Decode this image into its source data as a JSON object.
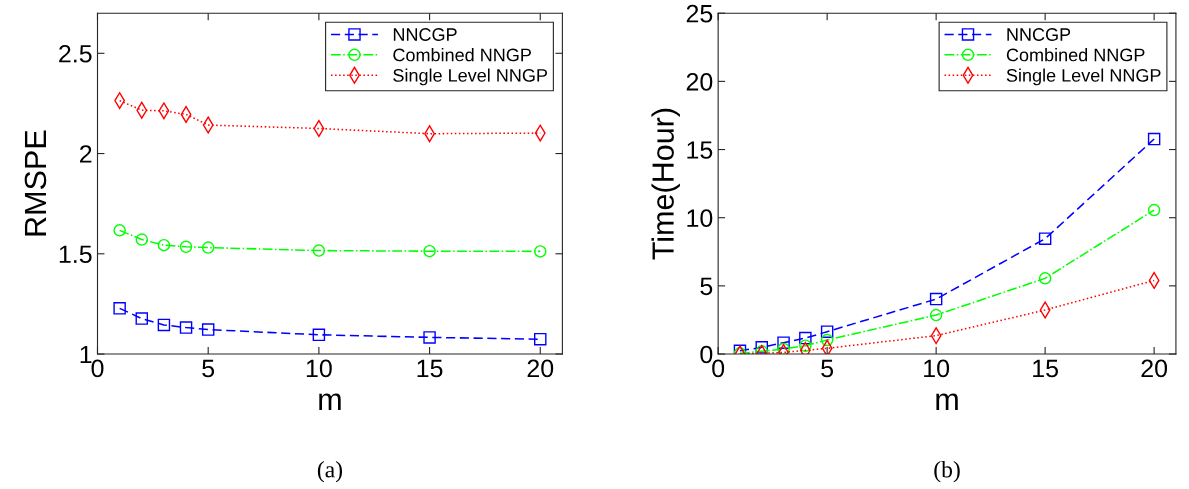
{
  "chart_data": [
    {
      "type": "line",
      "xlabel": "m",
      "ylabel": "RMSPE",
      "x": [
        1,
        2,
        3,
        4,
        5,
        10,
        15,
        20
      ],
      "xlim": [
        0,
        21
      ],
      "xticks": [
        0,
        5,
        10,
        15,
        20
      ],
      "ylim": [
        1,
        2.7
      ],
      "yticks": [
        1,
        {
          "value": 1.5,
          "label": "1.5"
        },
        2,
        {
          "value": 2.5,
          "label": "2.5"
        }
      ],
      "grid": false,
      "legend": "top right",
      "annotations": [
        "(a)"
      ],
      "series": [
        {
          "name": "NNCGP",
          "color": "#0000ff",
          "marker": "square",
          "line_style": "dashed",
          "values": [
            1.228,
            1.177,
            1.145,
            1.132,
            1.122,
            1.096,
            1.083,
            1.074
          ]
        },
        {
          "name": "Combined NNGP",
          "color": "#00ff00",
          "marker": "circle",
          "line_style": "dashdot",
          "values": [
            1.617,
            1.571,
            1.543,
            1.535,
            1.531,
            1.516,
            1.513,
            1.512
          ]
        },
        {
          "name": "Single Level NNGP",
          "color": "#ff0000",
          "marker": "diamond",
          "line_style": "dotted",
          "values": [
            2.264,
            2.216,
            2.213,
            2.195,
            2.142,
            2.125,
            2.099,
            2.102
          ]
        }
      ]
    },
    {
      "type": "line",
      "xlabel": "m",
      "ylabel": "Time(Hour)",
      "x": [
        1,
        2,
        3,
        4,
        5,
        10,
        15,
        20
      ],
      "xlim": [
        0,
        21
      ],
      "xticks": [
        0,
        5,
        10,
        15,
        20
      ],
      "ylim": [
        0,
        25
      ],
      "yticks": [
        0,
        5,
        10,
        15,
        20,
        25
      ],
      "grid": false,
      "legend": "top right",
      "annotations": [
        "(b)"
      ],
      "series": [
        {
          "name": "NNCGP",
          "color": "#0000ff",
          "marker": "square",
          "line_style": "dashed",
          "values": [
            0.24,
            0.49,
            0.83,
            1.17,
            1.64,
            4.03,
            8.46,
            15.77
          ]
        },
        {
          "name": "Combined NNGP",
          "color": "#00ff00",
          "marker": "circle",
          "line_style": "dashdot",
          "values": [
            0.05,
            0.2,
            0.37,
            0.61,
            1.03,
            2.86,
            5.55,
            10.56
          ]
        },
        {
          "name": "Single Level NNGP",
          "color": "#ff0000",
          "marker": "diamond",
          "line_style": "dotted",
          "values": [
            0.0,
            0.05,
            0.12,
            0.27,
            0.42,
            1.35,
            3.23,
            5.4
          ]
        }
      ]
    }
  ]
}
